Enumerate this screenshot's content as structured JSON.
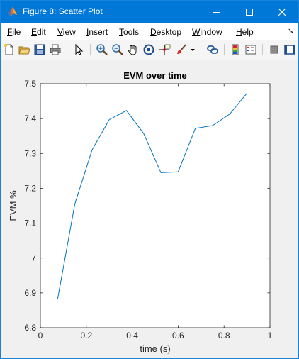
{
  "window": {
    "title": "Figure 8: Scatter Plot",
    "accent": "#0078d7"
  },
  "menu": {
    "items": [
      {
        "label": "File",
        "underline": "F",
        "rest": "ile"
      },
      {
        "label": "Edit",
        "underline": "E",
        "rest": "dit"
      },
      {
        "label": "View",
        "underline": "V",
        "rest": "iew"
      },
      {
        "label": "Insert",
        "underline": "I",
        "rest": "nsert"
      },
      {
        "label": "Tools",
        "underline": "T",
        "rest": "ools"
      },
      {
        "label": "Desktop",
        "underline": "D",
        "rest": "esktop"
      },
      {
        "label": "Window",
        "underline": "W",
        "rest": "indow"
      },
      {
        "label": "Help",
        "underline": "H",
        "rest": "elp"
      }
    ]
  },
  "toolbar": {
    "icons": [
      "new-figure-icon",
      "open-file-icon",
      "save-icon",
      "print-icon",
      "edit-plot-arrow-icon",
      "zoom-in-icon",
      "zoom-out-icon",
      "pan-hand-icon",
      "rotate-3d-icon",
      "data-cursor-icon",
      "brush-icon",
      "brush-dropdown-icon",
      "link-plot-icon",
      "colorbar-icon",
      "legend-icon",
      "hide-plot-tools-icon",
      "show-plot-tools-icon"
    ]
  },
  "chart_data": {
    "type": "line",
    "title": "EVM over time",
    "xlabel": "time (s)",
    "ylabel": "EVM %",
    "xlim": [
      0,
      1
    ],
    "ylim": [
      6.8,
      7.5
    ],
    "xticks": [
      0,
      0.2,
      0.4,
      0.6,
      0.8,
      1
    ],
    "xtick_labels": [
      "0",
      "0.2",
      "0.4",
      "0.6",
      "0.8",
      "1"
    ],
    "yticks": [
      6.8,
      6.9,
      7.0,
      7.1,
      7.2,
      7.3,
      7.4,
      7.5
    ],
    "ytick_labels": [
      "6.8",
      "6.9",
      "7",
      "7.1",
      "7.2",
      "7.3",
      "7.4",
      "7.5"
    ],
    "grid": false,
    "series": [
      {
        "color": "#0072bd",
        "x": [
          0.075,
          0.15,
          0.225,
          0.3,
          0.375,
          0.45,
          0.525,
          0.6,
          0.675,
          0.75,
          0.825,
          0.9
        ],
        "y": [
          6.882,
          7.155,
          7.31,
          7.397,
          7.423,
          7.357,
          7.245,
          7.247,
          7.372,
          7.38,
          7.413,
          7.473
        ]
      }
    ]
  }
}
